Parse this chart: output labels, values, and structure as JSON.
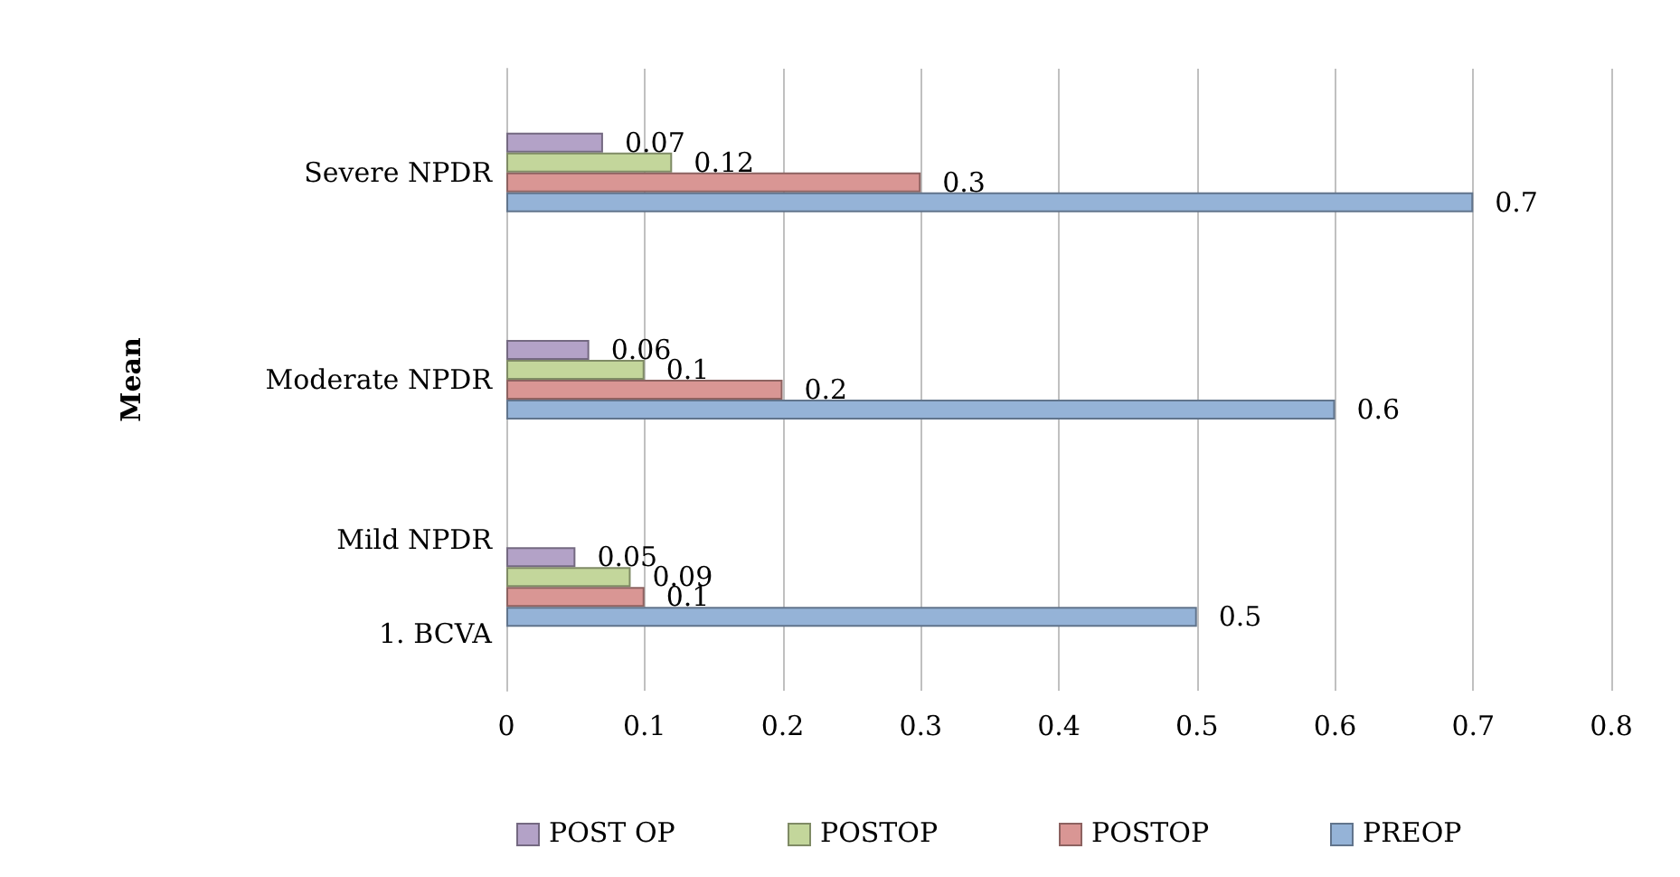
{
  "chart_data": {
    "type": "bar",
    "orientation": "horizontal",
    "ylabel": "Mean",
    "categories": [
      "Severe NPDR",
      "Moderate NPDR",
      "Mild NPDR\n\n1. BCVA"
    ],
    "series": [
      {
        "name": "POST OP",
        "color": "#b3a2c7",
        "values": [
          0.07,
          0.06,
          0.05
        ]
      },
      {
        "name": "POSTOP",
        "color": "#c3d69b",
        "values": [
          0.12,
          0.1,
          0.09
        ]
      },
      {
        "name": "POSTOP",
        "color": "#d99694",
        "values": [
          0.3,
          0.2,
          0.1
        ]
      },
      {
        "name": "PREOP",
        "color": "#95b3d7",
        "values": [
          0.7,
          0.6,
          0.5
        ]
      }
    ],
    "xlim": [
      0,
      0.8
    ],
    "xticks": [
      0,
      0.1,
      0.2,
      0.3,
      0.4,
      0.5,
      0.6,
      0.7,
      0.8
    ],
    "grid": "x",
    "legend": "bottom",
    "data_labels": true
  }
}
